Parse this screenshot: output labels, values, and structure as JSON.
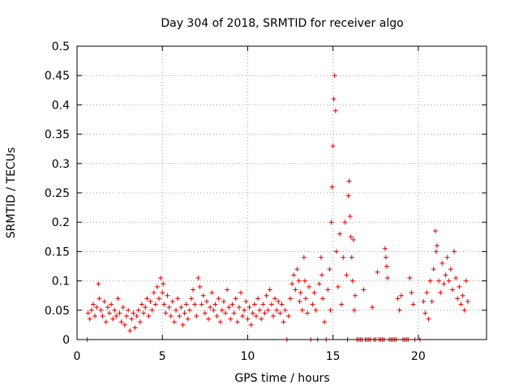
{
  "chart_data": {
    "type": "scatter",
    "title": "Day 304 of 2018, SRMTID for receiver algo",
    "xlabel": "GPS time / hours",
    "ylabel": "SRMTID / TECUs",
    "xlim": [
      0,
      24
    ],
    "ylim": [
      0,
      0.5
    ],
    "x_ticks": [
      0,
      5,
      10,
      15,
      20
    ],
    "y_ticks": [
      0,
      0.05,
      0.1,
      0.15,
      0.2,
      0.25,
      0.3,
      0.35,
      0.4,
      0.45,
      0.5
    ],
    "grid": true,
    "marker": "+",
    "series_color": "#e00000",
    "series": [
      {
        "name": "SRMTID",
        "points": [
          [
            0.6,
            0.0
          ],
          [
            0.65,
            0.045
          ],
          [
            0.75,
            0.035
          ],
          [
            0.85,
            0.05
          ],
          [
            0.95,
            0.06
          ],
          [
            1.05,
            0.04
          ],
          [
            1.15,
            0.055
          ],
          [
            1.25,
            0.095
          ],
          [
            1.3,
            0.07
          ],
          [
            1.4,
            0.05
          ],
          [
            1.5,
            0.04
          ],
          [
            1.6,
            0.065
          ],
          [
            1.7,
            0.03
          ],
          [
            1.8,
            0.055
          ],
          [
            1.9,
            0.045
          ],
          [
            2.0,
            0.06
          ],
          [
            2.1,
            0.035
          ],
          [
            2.2,
            0.05
          ],
          [
            2.3,
            0.04
          ],
          [
            2.4,
            0.07
          ],
          [
            2.5,
            0.045
          ],
          [
            2.6,
            0.03
          ],
          [
            2.7,
            0.055
          ],
          [
            2.8,
            0.025
          ],
          [
            2.9,
            0.04
          ],
          [
            3.0,
            0.05
          ],
          [
            3.1,
            0.015
          ],
          [
            3.2,
            0.035
          ],
          [
            3.3,
            0.045
          ],
          [
            3.4,
            0.02
          ],
          [
            3.5,
            0.04
          ],
          [
            3.6,
            0.05
          ],
          [
            3.7,
            0.03
          ],
          [
            3.8,
            0.06
          ],
          [
            3.9,
            0.045
          ],
          [
            4.0,
            0.055
          ],
          [
            4.1,
            0.07
          ],
          [
            4.2,
            0.04
          ],
          [
            4.3,
            0.065
          ],
          [
            4.4,
            0.05
          ],
          [
            4.5,
            0.08
          ],
          [
            4.6,
            0.06
          ],
          [
            4.7,
            0.09
          ],
          [
            4.8,
            0.07
          ],
          [
            4.9,
            0.105
          ],
          [
            5.0,
            0.08
          ],
          [
            5.05,
            0.095
          ],
          [
            5.1,
            0.06
          ],
          [
            5.2,
            0.045
          ],
          [
            5.3,
            0.075
          ],
          [
            5.4,
            0.055
          ],
          [
            5.5,
            0.04
          ],
          [
            5.6,
            0.065
          ],
          [
            5.7,
            0.03
          ],
          [
            5.8,
            0.05
          ],
          [
            5.9,
            0.07
          ],
          [
            6.0,
            0.04
          ],
          [
            6.1,
            0.055
          ],
          [
            6.2,
            0.025
          ],
          [
            6.3,
            0.045
          ],
          [
            6.4,
            0.06
          ],
          [
            6.5,
            0.035
          ],
          [
            6.6,
            0.05
          ],
          [
            6.7,
            0.07
          ],
          [
            6.8,
            0.085
          ],
          [
            6.9,
            0.06
          ],
          [
            7.0,
            0.04
          ],
          [
            7.1,
            0.105
          ],
          [
            7.2,
            0.09
          ],
          [
            7.3,
            0.06
          ],
          [
            7.4,
            0.075
          ],
          [
            7.5,
            0.045
          ],
          [
            7.6,
            0.065
          ],
          [
            7.7,
            0.035
          ],
          [
            7.8,
            0.055
          ],
          [
            7.9,
            0.08
          ],
          [
            8.0,
            0.05
          ],
          [
            8.1,
            0.06
          ],
          [
            8.2,
            0.04
          ],
          [
            8.3,
            0.07
          ],
          [
            8.4,
            0.03
          ],
          [
            8.5,
            0.05
          ],
          [
            8.6,
            0.065
          ],
          [
            8.7,
            0.045
          ],
          [
            8.8,
            0.085
          ],
          [
            8.9,
            0.055
          ],
          [
            9.0,
            0.035
          ],
          [
            9.1,
            0.06
          ],
          [
            9.2,
            0.045
          ],
          [
            9.3,
            0.07
          ],
          [
            9.4,
            0.03
          ],
          [
            9.5,
            0.055
          ],
          [
            9.6,
            0.08
          ],
          [
            9.7,
            0.04
          ],
          [
            9.8,
            0.05
          ],
          [
            9.9,
            0.065
          ],
          [
            10.0,
            0.035
          ],
          [
            10.1,
            0.055
          ],
          [
            10.2,
            0.025
          ],
          [
            10.3,
            0.045
          ],
          [
            10.4,
            0.06
          ],
          [
            10.5,
            0.04
          ],
          [
            10.6,
            0.07
          ],
          [
            10.7,
            0.05
          ],
          [
            10.8,
            0.035
          ],
          [
            10.9,
            0.06
          ],
          [
            11.0,
            0.045
          ],
          [
            11.1,
            0.075
          ],
          [
            11.2,
            0.05
          ],
          [
            11.3,
            0.085
          ],
          [
            11.4,
            0.06
          ],
          [
            11.5,
            0.04
          ],
          [
            11.6,
            0.07
          ],
          [
            11.7,
            0.05
          ],
          [
            11.8,
            0.065
          ],
          [
            11.9,
            0.045
          ],
          [
            12.0,
            0.06
          ],
          [
            12.1,
            0.03
          ],
          [
            12.2,
            0.05
          ],
          [
            12.3,
            0.0
          ],
          [
            12.4,
            0.04
          ],
          [
            12.5,
            0.07
          ],
          [
            12.6,
            0.095
          ],
          [
            12.7,
            0.11
          ],
          [
            12.8,
            0.085
          ],
          [
            12.9,
            0.12
          ],
          [
            13.0,
            0.1
          ],
          [
            13.05,
            0.065
          ],
          [
            13.1,
            0.08
          ],
          [
            13.2,
            0.05
          ],
          [
            13.3,
            0.14
          ],
          [
            13.35,
            0.1
          ],
          [
            13.4,
            0.07
          ],
          [
            13.5,
            0.045
          ],
          [
            13.6,
            0.09
          ],
          [
            13.7,
            0.0
          ],
          [
            13.8,
            0.06
          ],
          [
            13.9,
            0.08
          ],
          [
            14.0,
            0.05
          ],
          [
            14.1,
            0.0
          ],
          [
            14.2,
            0.095
          ],
          [
            14.3,
            0.14
          ],
          [
            14.35,
            0.11
          ],
          [
            14.4,
            0.07
          ],
          [
            14.5,
            0.03
          ],
          [
            14.6,
            0.0
          ],
          [
            14.7,
            0.085
          ],
          [
            14.8,
            0.12
          ],
          [
            14.85,
            0.05
          ],
          [
            14.9,
            0.2
          ],
          [
            14.95,
            0.26
          ],
          [
            15.0,
            0.33
          ],
          [
            15.05,
            0.41
          ],
          [
            15.1,
            0.45
          ],
          [
            15.15,
            0.39
          ],
          [
            15.2,
            0.15
          ],
          [
            15.3,
            0.09
          ],
          [
            15.4,
            0.18
          ],
          [
            15.5,
            0.06
          ],
          [
            15.6,
            0.14
          ],
          [
            15.7,
            0.2
          ],
          [
            15.8,
            0.11
          ],
          [
            15.85,
            0.0
          ],
          [
            15.9,
            0.245
          ],
          [
            15.95,
            0.27
          ],
          [
            16.0,
            0.21
          ],
          [
            16.05,
            0.175
          ],
          [
            16.1,
            0.14
          ],
          [
            16.15,
            0.1
          ],
          [
            16.2,
            0.17
          ],
          [
            16.25,
            0.05
          ],
          [
            16.3,
            0.075
          ],
          [
            16.4,
            0.0
          ],
          [
            16.5,
            0.0
          ],
          [
            16.6,
            0.0
          ],
          [
            16.7,
            0.0
          ],
          [
            16.8,
            0.085
          ],
          [
            16.9,
            0.0
          ],
          [
            17.0,
            0.0
          ],
          [
            17.1,
            0.0
          ],
          [
            17.2,
            0.0
          ],
          [
            17.3,
            0.055
          ],
          [
            17.4,
            0.0
          ],
          [
            17.5,
            0.0
          ],
          [
            17.6,
            0.115
          ],
          [
            17.7,
            0.0
          ],
          [
            17.8,
            0.0
          ],
          [
            17.9,
            0.0
          ],
          [
            18.0,
            0.0
          ],
          [
            18.05,
            0.155
          ],
          [
            18.1,
            0.14
          ],
          [
            18.15,
            0.125
          ],
          [
            18.2,
            0.105
          ],
          [
            18.3,
            0.0
          ],
          [
            18.4,
            0.0
          ],
          [
            18.5,
            0.0
          ],
          [
            18.6,
            0.0
          ],
          [
            18.7,
            0.0
          ],
          [
            18.8,
            0.07
          ],
          [
            18.9,
            0.05
          ],
          [
            19.0,
            0.075
          ],
          [
            19.1,
            0.0
          ],
          [
            19.2,
            0.0
          ],
          [
            19.3,
            0.0
          ],
          [
            19.4,
            0.0
          ],
          [
            19.5,
            0.105
          ],
          [
            19.6,
            0.08
          ],
          [
            19.7,
            0.06
          ],
          [
            19.8,
            0.0
          ],
          [
            20.1,
            0.0
          ],
          [
            20.3,
            0.065
          ],
          [
            20.4,
            0.045
          ],
          [
            20.5,
            0.08
          ],
          [
            20.6,
            0.035
          ],
          [
            20.7,
            0.1
          ],
          [
            20.8,
            0.065
          ],
          [
            20.9,
            0.12
          ],
          [
            21.0,
            0.185
          ],
          [
            21.05,
            0.15
          ],
          [
            21.1,
            0.16
          ],
          [
            21.2,
            0.1
          ],
          [
            21.3,
            0.08
          ],
          [
            21.4,
            0.13
          ],
          [
            21.5,
            0.095
          ],
          [
            21.6,
            0.11
          ],
          [
            21.7,
            0.14
          ],
          [
            21.8,
            0.1
          ],
          [
            21.9,
            0.12
          ],
          [
            22.0,
            0.085
          ],
          [
            22.1,
            0.15
          ],
          [
            22.2,
            0.105
          ],
          [
            22.3,
            0.07
          ],
          [
            22.4,
            0.09
          ],
          [
            22.5,
            0.06
          ],
          [
            22.6,
            0.075
          ],
          [
            22.7,
            0.05
          ],
          [
            22.8,
            0.1
          ],
          [
            22.9,
            0.065
          ]
        ]
      }
    ]
  }
}
